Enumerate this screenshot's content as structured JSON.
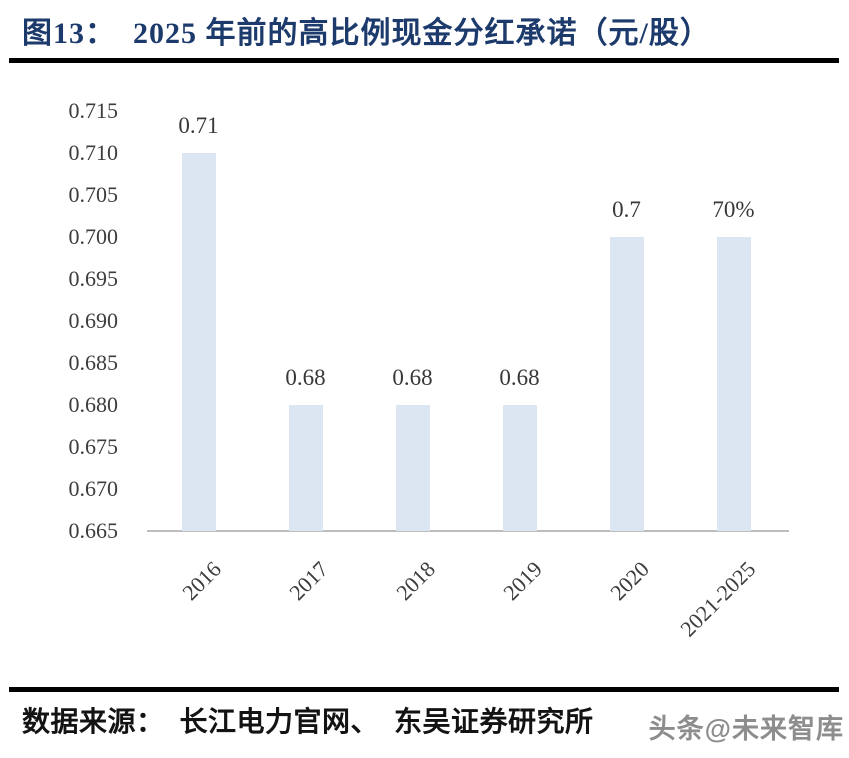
{
  "figure": {
    "title": "图13：  2025 年前的高比例现金分红承诺（元/股）",
    "source_label": "数据来源：  长江电力官网、  东吴证券研究所",
    "watermark": "头条@未来智库"
  },
  "chart_data": {
    "type": "bar",
    "title": "2025 年前的高比例现金分红承诺（元/股）",
    "categories": [
      "2016",
      "2017",
      "2018",
      "2019",
      "2020",
      "2021-2025"
    ],
    "values": [
      0.71,
      0.68,
      0.68,
      0.68,
      0.7,
      0.7
    ],
    "bar_labels": [
      "0.71",
      "0.68",
      "0.68",
      "0.68",
      "0.7",
      "70%"
    ],
    "xlabel": "",
    "ylabel": "",
    "ylim": [
      0.665,
      0.715
    ],
    "ytick_step": 0.005,
    "yticks": [
      0.715,
      0.71,
      0.705,
      0.7,
      0.695,
      0.69,
      0.685,
      0.68,
      0.675,
      0.67,
      0.665
    ],
    "ytick_labels": [
      "0.715",
      "0.710",
      "0.705",
      "0.700",
      "0.695",
      "0.690",
      "0.685",
      "0.680",
      "0.675",
      "0.670",
      "0.665"
    ],
    "x_tick_rotation_deg": 45,
    "grid": false,
    "legend": null
  },
  "colors": {
    "background": "#ffffff",
    "title_text": "#1c3a6b",
    "divider": "#000000",
    "bar_fill": "#dbe6f2",
    "axis_line": "#bdbdbd",
    "tick_text": "#3d3d3d",
    "bar_label_text": "#383838",
    "source_text": "#131313",
    "watermark_text": "#8d8d8d"
  }
}
